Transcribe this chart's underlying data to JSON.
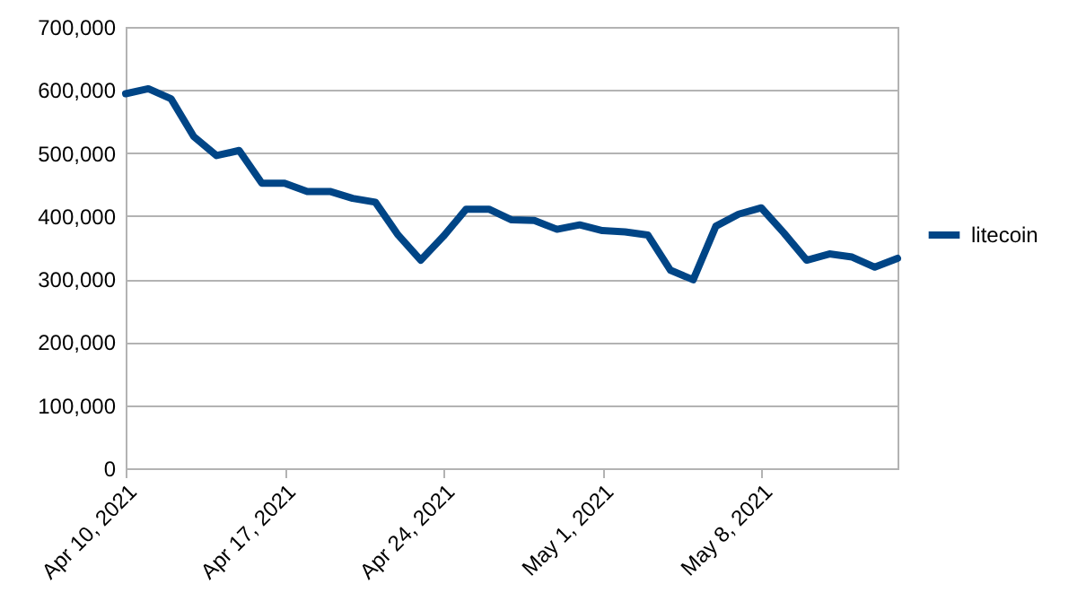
{
  "chart_data": {
    "type": "line",
    "x": [
      "2021-04-10",
      "2021-04-11",
      "2021-04-12",
      "2021-04-13",
      "2021-04-14",
      "2021-04-15",
      "2021-04-16",
      "2021-04-17",
      "2021-04-18",
      "2021-04-19",
      "2021-04-20",
      "2021-04-21",
      "2021-04-22",
      "2021-04-23",
      "2021-04-24",
      "2021-04-25",
      "2021-04-26",
      "2021-04-27",
      "2021-04-28",
      "2021-04-29",
      "2021-04-30",
      "2021-05-01",
      "2021-05-02",
      "2021-05-03",
      "2021-05-04",
      "2021-05-05",
      "2021-05-06",
      "2021-05-07",
      "2021-05-08",
      "2021-05-09",
      "2021-05-10",
      "2021-05-11",
      "2021-05-12",
      "2021-05-13",
      "2021-05-14"
    ],
    "series": [
      {
        "name": "litecoin",
        "color": "#004586",
        "values": [
          594000,
          602000,
          586000,
          526000,
          496000,
          504000,
          452000,
          452000,
          439000,
          439000,
          428000,
          422000,
          370000,
          330000,
          368000,
          411000,
          411000,
          394000,
          393000,
          379000,
          386000,
          377000,
          375000,
          370000,
          314000,
          299000,
          384000,
          403000,
          413000,
          373000,
          330000,
          340000,
          335000,
          319000,
          333000
        ]
      }
    ],
    "xlim": [
      "2021-04-10",
      "2021-05-14"
    ],
    "xticks": [
      {
        "value": "2021-04-10",
        "label": "Apr 10, 2021"
      },
      {
        "value": "2021-04-17",
        "label": "Apr 17, 2021"
      },
      {
        "value": "2021-04-24",
        "label": "Apr 24, 2021"
      },
      {
        "value": "2021-05-01",
        "label": "May 1, 2021"
      },
      {
        "value": "2021-05-08",
        "label": "May 8, 2021"
      }
    ],
    "ylim": [
      0,
      700000
    ],
    "yticks": [
      {
        "value": 0,
        "label": "0"
      },
      {
        "value": 100000,
        "label": "100,000"
      },
      {
        "value": 200000,
        "label": "200,000"
      },
      {
        "value": 300000,
        "label": "300,000"
      },
      {
        "value": 400000,
        "label": "400,000"
      },
      {
        "value": 500000,
        "label": "500,000"
      },
      {
        "value": 600000,
        "label": "600,000"
      },
      {
        "value": 700000,
        "label": "700,000"
      }
    ],
    "grid": "y",
    "legend": "right",
    "line_style": "solid"
  }
}
